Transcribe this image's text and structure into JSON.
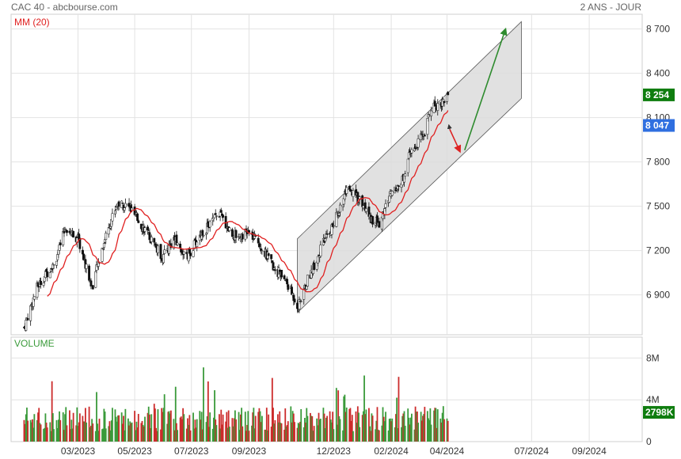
{
  "header": {
    "title": "CAC 40 - abcbourse.com",
    "period": "2 ANS - JOUR"
  },
  "colors": {
    "up": "#3a9a3a",
    "down": "#cc2b2b",
    "ma": "#e02020",
    "channel_fill": "#dcdcdc",
    "channel_stroke": "#555555",
    "arrow_up": "#2e8b2e",
    "arrow_down": "#dd2222",
    "badge_price": "#0f7d0f",
    "badge_ma": "#2f6fe0",
    "badge_volume": "#0f7d0f",
    "grid": "#e2e2e2"
  },
  "chart_data": {
    "type": "candlestick",
    "price_panel": {
      "ma_label": "MM (20)",
      "y_ticks": [
        {
          "value": 6900,
          "label": "6 900"
        },
        {
          "value": 7200,
          "label": "7 200"
        },
        {
          "value": 7500,
          "label": "7 500"
        },
        {
          "value": 7800,
          "label": "7 800"
        },
        {
          "value": 8100,
          "label": "8 100"
        },
        {
          "value": 8400,
          "label": "8 400"
        },
        {
          "value": 8700,
          "label": "8 700"
        }
      ],
      "ylim": [
        6630,
        8800
      ],
      "last_price": {
        "value": 8254,
        "label": "8 254"
      },
      "last_ma": {
        "value": 8047,
        "label": "8 047"
      },
      "key_points": [
        {
          "date": "2023-01-02",
          "close": 6680
        },
        {
          "date": "2023-01-16",
          "close": 6950
        },
        {
          "date": "2023-02-06",
          "close": 7150
        },
        {
          "date": "2023-02-16",
          "close": 7360
        },
        {
          "date": "2023-03-01",
          "close": 7280
        },
        {
          "date": "2023-03-16",
          "close": 6950
        },
        {
          "date": "2023-03-31",
          "close": 7310
        },
        {
          "date": "2023-04-12",
          "close": 7520
        },
        {
          "date": "2023-04-24",
          "close": 7500
        },
        {
          "date": "2023-05-10",
          "close": 7360
        },
        {
          "date": "2023-05-31",
          "close": 7150
        },
        {
          "date": "2023-06-12",
          "close": 7280
        },
        {
          "date": "2023-06-26",
          "close": 7150
        },
        {
          "date": "2023-07-10",
          "close": 7300
        },
        {
          "date": "2023-07-31",
          "close": 7450
        },
        {
          "date": "2023-08-15",
          "close": 7300
        },
        {
          "date": "2023-08-31",
          "close": 7320
        },
        {
          "date": "2023-09-12",
          "close": 7250
        },
        {
          "date": "2023-09-26",
          "close": 7100
        },
        {
          "date": "2023-10-10",
          "close": 7000
        },
        {
          "date": "2023-10-24",
          "close": 6820
        },
        {
          "date": "2023-11-03",
          "close": 7000
        },
        {
          "date": "2023-11-20",
          "close": 7250
        },
        {
          "date": "2023-12-01",
          "close": 7380
        },
        {
          "date": "2023-12-15",
          "close": 7600
        },
        {
          "date": "2023-12-29",
          "close": 7550
        },
        {
          "date": "2024-01-10",
          "close": 7420
        },
        {
          "date": "2024-01-19",
          "close": 7380
        },
        {
          "date": "2024-02-01",
          "close": 7600
        },
        {
          "date": "2024-02-12",
          "close": 7660
        },
        {
          "date": "2024-02-21",
          "close": 7850
        },
        {
          "date": "2024-03-01",
          "close": 7930
        },
        {
          "date": "2024-03-08",
          "close": 8000
        },
        {
          "date": "2024-03-15",
          "close": 8170
        },
        {
          "date": "2024-03-26",
          "close": 8200
        },
        {
          "date": "2024-04-02",
          "close": 8254
        }
      ],
      "channel": {
        "polygon": [
          {
            "date": "2023-10-23",
            "value": 7280
          },
          {
            "date": "2024-06-20",
            "value": 8750
          },
          {
            "date": "2024-06-20",
            "value": 8230
          },
          {
            "date": "2023-10-23",
            "value": 6780
          }
        ]
      },
      "arrows": [
        {
          "dir": "up",
          "from": {
            "date": "2024-04-20",
            "value": 7880
          },
          "to": {
            "date": "2024-06-03",
            "value": 8700
          }
        },
        {
          "dir": "down",
          "from": {
            "date": "2024-04-04",
            "value": 8020
          },
          "to": {
            "date": "2024-04-15",
            "value": 7870
          }
        },
        {
          "dir": "up",
          "from": {
            "date": "2024-04-04",
            "value": 8020
          },
          "to": {
            "date": "2024-04-03",
            "value": 8050
          }
        }
      ]
    },
    "volume_panel": {
      "label": "VOLUME",
      "y_ticks": [
        {
          "value": 0,
          "label": "0"
        },
        {
          "value": 4,
          "label": "4M"
        },
        {
          "value": 8,
          "label": "8M"
        }
      ],
      "ylim": [
        0,
        10
      ],
      "last_volume": {
        "value": 2.798,
        "label": "2798K"
      }
    },
    "x_ticks": [
      {
        "date": "2023-03-01",
        "label": "03/2023"
      },
      {
        "date": "2023-05-01",
        "label": "05/2023"
      },
      {
        "date": "2023-07-01",
        "label": "07/2023"
      },
      {
        "date": "2023-09-01",
        "label": "09/2023"
      },
      {
        "date": "2023-12-01",
        "label": "12/2023"
      },
      {
        "date": "2024-02-01",
        "label": "02/2024"
      },
      {
        "date": "2024-04-01",
        "label": "04/2024"
      },
      {
        "date": "2024-07-01",
        "label": "07/2024"
      },
      {
        "date": "2024-09-01",
        "label": "09/2024"
      }
    ]
  }
}
